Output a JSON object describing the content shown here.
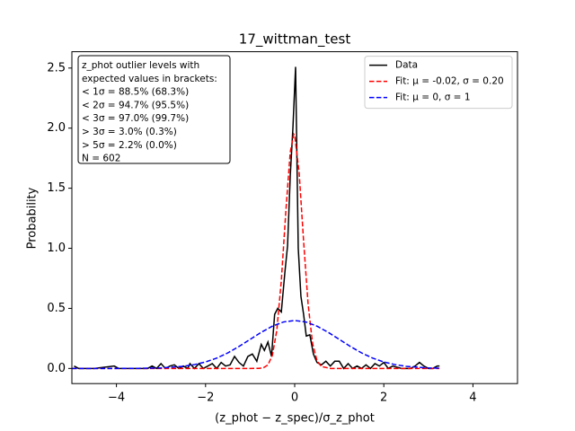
{
  "chart_data": {
    "type": "line",
    "title": "17_wittman_test",
    "x_label": "(z_phot − z_spec)/σ_z_phot",
    "y_label": "Probability",
    "xlim": [
      -5,
      5
    ],
    "ylim": [
      -0.126,
      2.636
    ],
    "xticks": [
      {
        "value": -4,
        "label": "−4"
      },
      {
        "value": -2,
        "label": "−2"
      },
      0,
      2,
      4
    ],
    "yticks": [
      {
        "value": 0,
        "label": "0.0"
      },
      0.5,
      {
        "value": 1,
        "label": "1.0"
      },
      1.5,
      {
        "value": 2,
        "label": "2.0"
      },
      2.5
    ],
    "legend": "upper right",
    "annotation": [
      "z_phot outlier levels with",
      " expected values in brackets:",
      "< 1σ = 88.5% (68.3%)",
      "< 2σ = 94.7% (95.5%)",
      "< 3σ = 97.0% (99.7%)",
      "> 3σ = 3.0% (0.3%)",
      "> 5σ = 2.2% (0.0%)",
      "N = 602"
    ],
    "series": [
      {
        "name": "Data",
        "color": "#000000",
        "dash": "solid",
        "x": [
          -4.95,
          -4.85,
          -4.5,
          -4.05,
          -3.95,
          -3.3,
          -3.2,
          -3.1,
          -3.0,
          -2.9,
          -2.8,
          -2.7,
          -2.6,
          -2.5,
          -2.4,
          -2.35,
          -2.25,
          -2.15,
          -2.05,
          -1.95,
          -1.85,
          -1.75,
          -1.65,
          -1.55,
          -1.45,
          -1.35,
          -1.25,
          -1.15,
          -1.05,
          -0.95,
          -0.85,
          -0.75,
          -0.68,
          -0.6,
          -0.52,
          -0.45,
          -0.38,
          -0.3,
          -0.22,
          -0.16,
          -0.1,
          -0.04,
          0.02,
          0.08,
          0.14,
          0.2,
          0.26,
          0.34,
          0.42,
          0.5,
          0.6,
          0.7,
          0.8,
          0.9,
          1.0,
          1.1,
          1.2,
          1.3,
          1.4,
          1.5,
          1.6,
          1.7,
          1.8,
          1.9,
          2.0,
          2.1,
          2.2,
          2.4,
          2.6,
          2.7,
          2.8,
          2.9,
          3.0,
          3.1,
          3.2,
          3.25
        ],
        "values": [
          0.02,
          0,
          0,
          0.02,
          0,
          0,
          0.02,
          0,
          0.04,
          0,
          0.02,
          0.03,
          0,
          0.02,
          0,
          0.04,
          0,
          0.04,
          0,
          0.02,
          0.04,
          0,
          0.05,
          0.02,
          0.03,
          0.1,
          0.05,
          0.02,
          0.1,
          0.12,
          0.06,
          0.2,
          0.15,
          0.22,
          0.1,
          0.45,
          0.5,
          0.47,
          0.8,
          1.02,
          1.6,
          2.0,
          2.51,
          1.0,
          0.6,
          0.45,
          0.27,
          0.28,
          0.12,
          0.05,
          0.03,
          0.06,
          0.02,
          0.06,
          0.06,
          0,
          0.04,
          0,
          0.02,
          0,
          0.03,
          0,
          0.04,
          0.02,
          0.05,
          0,
          0.02,
          0,
          0,
          0.02,
          0.05,
          0.02,
          0,
          0,
          0.02,
          0.02
        ]
      },
      {
        "name": "Fit: μ = -0.02, σ = 0.20",
        "color": "#ff0000",
        "dash": "dashed",
        "x": [
          -5,
          -1,
          -0.8,
          -0.7,
          -0.6,
          -0.5,
          -0.4,
          -0.3,
          -0.2,
          -0.1,
          -0.02,
          0,
          0.1,
          0.2,
          0.3,
          0.4,
          0.5,
          0.6,
          0.8,
          1,
          3.25
        ],
        "values": [
          0,
          0,
          0.001,
          0.006,
          0.029,
          0.11,
          0.32,
          0.73,
          1.3,
          1.8,
          1.95,
          1.94,
          1.63,
          1.06,
          0.54,
          0.21,
          0.066,
          0.016,
          0,
          0,
          0
        ]
      },
      {
        "name": "Fit: μ = 0, σ = 1",
        "color": "#0000ff",
        "dash": "dashed",
        "x": [
          -5,
          -4,
          -3.5,
          -3,
          -2.5,
          -2.25,
          -2,
          -1.75,
          -1.5,
          -1.25,
          -1,
          -0.75,
          -0.5,
          -0.25,
          0,
          0.25,
          0.5,
          0.75,
          1,
          1.25,
          1.5,
          1.75,
          2,
          2.25,
          2.5,
          3,
          3.25
        ],
        "values": [
          0,
          0.0001,
          0.0009,
          0.0044,
          0.0175,
          0.032,
          0.054,
          0.086,
          0.1295,
          0.183,
          0.242,
          0.301,
          0.352,
          0.387,
          0.399,
          0.387,
          0.352,
          0.301,
          0.242,
          0.183,
          0.1295,
          0.086,
          0.054,
          0.032,
          0.0175,
          0.0044,
          0.002
        ]
      }
    ]
  }
}
